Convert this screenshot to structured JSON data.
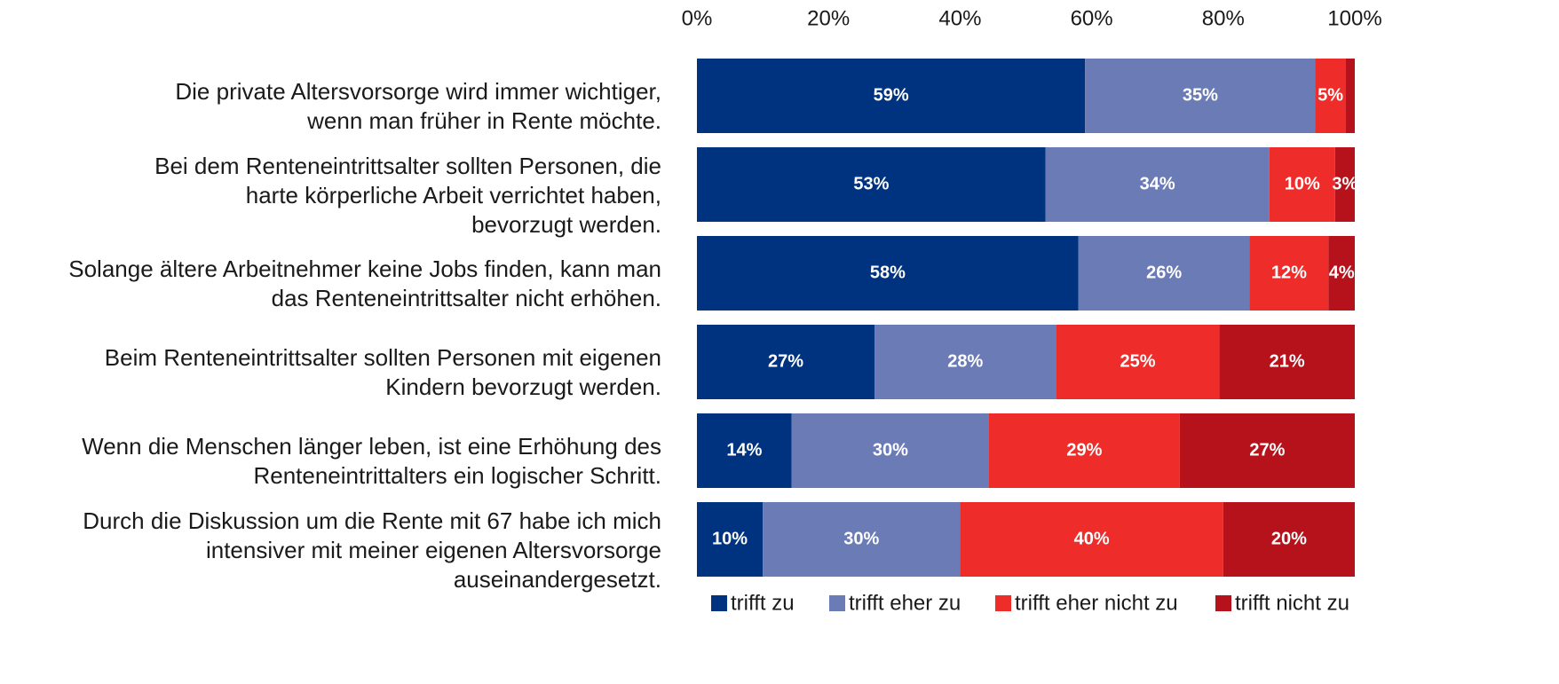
{
  "chart_data": {
    "type": "stacked-bar-horizontal",
    "categories": [
      "Die private Altersvorsorge wird immer wichtiger,\nwenn man früher in Rente möchte.",
      "Bei dem Renteneintrittsalter sollten Personen, die\nharte körperliche Arbeit verrichtet haben,\nbevorzugt werden.",
      "Solange ältere Arbeitnehmer keine Jobs finden, kann man\ndas Renteneintrittsalter nicht erhöhen.",
      "Beim Renteneintrittsalter sollten Personen mit eigenen\nKindern bevorzugt werden.",
      "Wenn die Menschen länger leben, ist eine Erhöhung des\nRenteneintrittalters ein logischer Schritt.",
      "Durch die Diskussion um die Rente mit 67 habe ich mich\nintensiver mit meiner eigenen Altersvorsorge\nauseinandergesetzt."
    ],
    "series": [
      {
        "name": "trifft zu",
        "color": "#00337f",
        "values": [
          59,
          53,
          58,
          27,
          14.4,
          10
        ],
        "value_labels": [
          "59%",
          "53%",
          "58%",
          "27%",
          "14%",
          "10%"
        ]
      },
      {
        "name": "trifft eher zu",
        "color": "#6b7bb6",
        "values": [
          35,
          34,
          26,
          27.6,
          30,
          30
        ],
        "value_labels": [
          "35%",
          "34%",
          "26%",
          "28%",
          "30%",
          "30%"
        ]
      },
      {
        "name": "trifft eher nicht zu",
        "color": "#ee2d2a",
        "values": [
          4.6,
          10,
          12,
          24.8,
          29,
          40
        ],
        "value_labels": [
          "5%",
          "10%",
          "12%",
          "25%",
          "29%",
          "40%"
        ]
      },
      {
        "name": "trifft nicht zu",
        "color": "#b5121b",
        "values": [
          1.4,
          3,
          4,
          20.6,
          26.6,
          20
        ],
        "value_labels": [
          null,
          "3%",
          "4%",
          "21%",
          "27%",
          "20%"
        ]
      }
    ],
    "xlim": [
      0,
      100
    ],
    "xticks": [
      {
        "value": 0,
        "label": "0%"
      },
      {
        "value": 20,
        "label": "20%"
      },
      {
        "value": 40,
        "label": "40%"
      },
      {
        "value": 60,
        "label": "60%"
      },
      {
        "value": 80,
        "label": "80%"
      },
      {
        "value": 100,
        "label": "100%"
      }
    ],
    "legend": "bottom"
  }
}
